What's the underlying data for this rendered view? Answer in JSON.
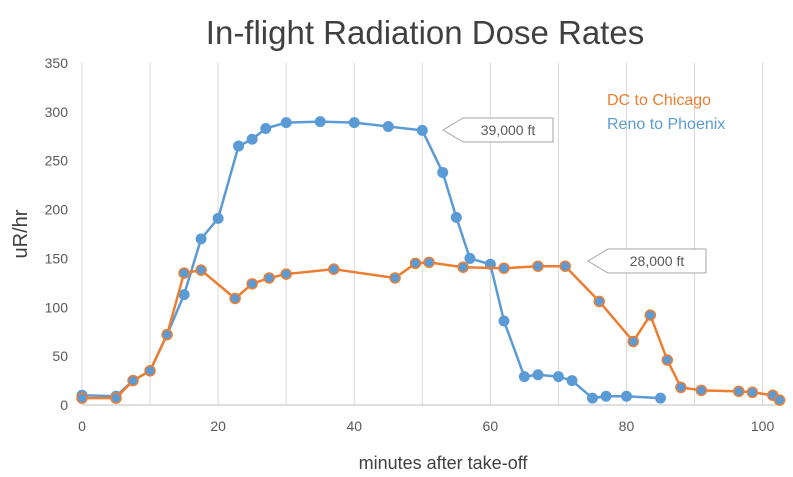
{
  "chart_data": {
    "type": "line",
    "title": "In-flight Radiation Dose Rates",
    "xlabel": "minutes after take-off",
    "ylabel": "uR/hr",
    "xlim": [
      0,
      103
    ],
    "ylim": [
      0,
      350
    ],
    "x_ticks": [
      0,
      20,
      40,
      60,
      80,
      100
    ],
    "y_ticks": [
      0,
      50,
      100,
      150,
      200,
      250,
      300,
      350
    ],
    "grid": "vertical",
    "legend_position": "top-right",
    "series": [
      {
        "name": "Reno to Phoenix",
        "color": "#5b9bd5",
        "points": [
          [
            0,
            10
          ],
          [
            5,
            9
          ],
          [
            7.5,
            25
          ],
          [
            10,
            35
          ],
          [
            12.5,
            72
          ],
          [
            15,
            113
          ],
          [
            17.5,
            170
          ],
          [
            20,
            191
          ],
          [
            23,
            265
          ],
          [
            25,
            272
          ],
          [
            27,
            283
          ],
          [
            30,
            289
          ],
          [
            35,
            290
          ],
          [
            40,
            289
          ],
          [
            45,
            285
          ],
          [
            50,
            281
          ],
          [
            53,
            238
          ],
          [
            55,
            192
          ],
          [
            57,
            150
          ],
          [
            60,
            144
          ],
          [
            62,
            86
          ],
          [
            65,
            29
          ],
          [
            67,
            31
          ],
          [
            70,
            29
          ],
          [
            72,
            25
          ],
          [
            75,
            7
          ],
          [
            77,
            9
          ],
          [
            80,
            9
          ],
          [
            85,
            7
          ]
        ]
      },
      {
        "name": "DC to Chicago",
        "color": "#ed7d31",
        "points": [
          [
            0,
            7
          ],
          [
            5,
            7
          ],
          [
            7.5,
            25
          ],
          [
            10,
            35
          ],
          [
            12.5,
            72
          ],
          [
            15,
            135
          ],
          [
            17.5,
            138
          ],
          [
            22.5,
            109
          ],
          [
            25,
            124
          ],
          [
            27.5,
            130
          ],
          [
            30,
            134
          ],
          [
            37,
            139
          ],
          [
            46,
            130
          ],
          [
            49,
            145
          ],
          [
            51,
            146
          ],
          [
            56,
            141
          ],
          [
            62,
            140
          ],
          [
            67,
            142
          ],
          [
            71,
            142
          ],
          [
            76,
            106
          ],
          [
            81,
            65
          ],
          [
            83.5,
            92
          ],
          [
            86,
            46
          ],
          [
            88,
            18
          ],
          [
            91,
            15
          ],
          [
            96.5,
            14
          ],
          [
            98.5,
            13
          ],
          [
            101.5,
            10
          ],
          [
            102.5,
            5
          ]
        ]
      }
    ],
    "annotations": [
      {
        "text": "39,000 ft",
        "x": 55,
        "y": 283
      },
      {
        "text": "28,000 ft",
        "x": 76,
        "y": 146
      }
    ]
  }
}
